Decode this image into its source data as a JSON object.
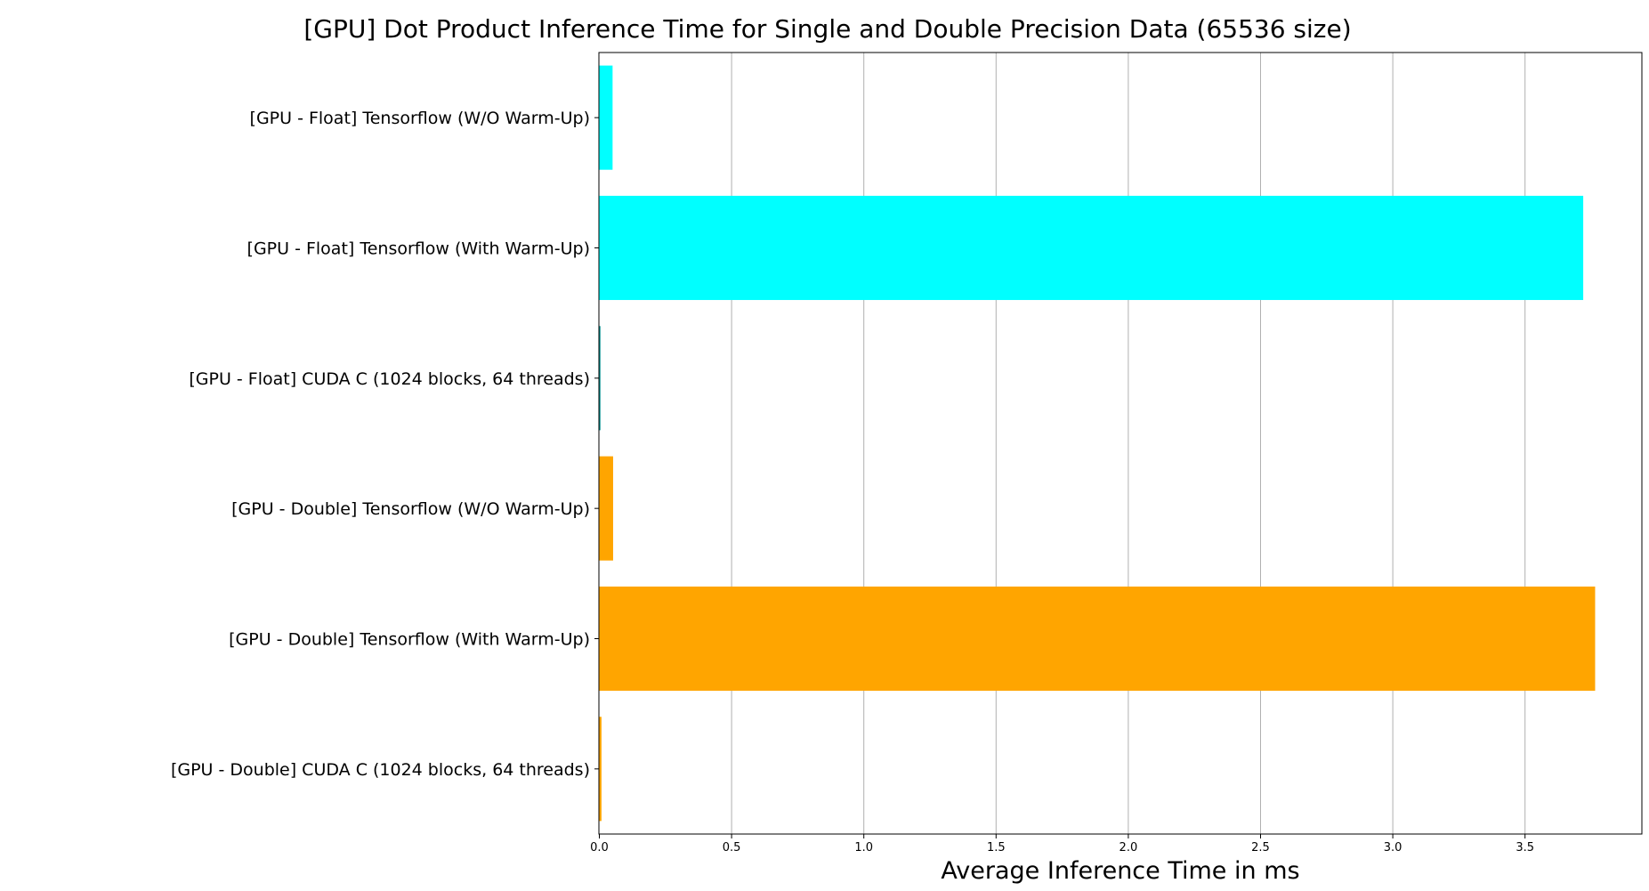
{
  "chart_data": {
    "type": "bar",
    "orientation": "horizontal",
    "title": "[GPU] Dot Product Inference Time for Single and Double Precision Data (65536 size)",
    "xlabel": "Average Inference Time in ms",
    "ylabel": "",
    "xlim": [
      0,
      3.95
    ],
    "xticks": [
      0.0,
      0.5,
      1.0,
      1.5,
      2.0,
      2.5,
      3.0,
      3.5
    ],
    "xtick_labels": [
      "0.0",
      "0.5",
      "1.0",
      "1.5",
      "2.0",
      "2.5",
      "3.0",
      "3.5"
    ],
    "grid": "x",
    "legend": "none",
    "categories": [
      "[GPU - Float] Tensorflow (W/O Warm-Up)",
      "[GPU - Float] Tensorflow (With Warm-Up)",
      "[GPU - Float] CUDA C (1024 blocks, 64 threads)",
      "[GPU - Double] Tensorflow (W/O Warm-Up)",
      "[GPU - Double] Tensorflow (With Warm-Up)",
      "[GPU - Double] CUDA C (1024 blocks, 64 threads)"
    ],
    "values": [
      0.05,
      3.72,
      0.004,
      0.052,
      3.765,
      0.008
    ],
    "colors": [
      "#00ffff",
      "#00ffff",
      "#008b8b",
      "#ffa500",
      "#ffa500",
      "#ffa500"
    ]
  }
}
